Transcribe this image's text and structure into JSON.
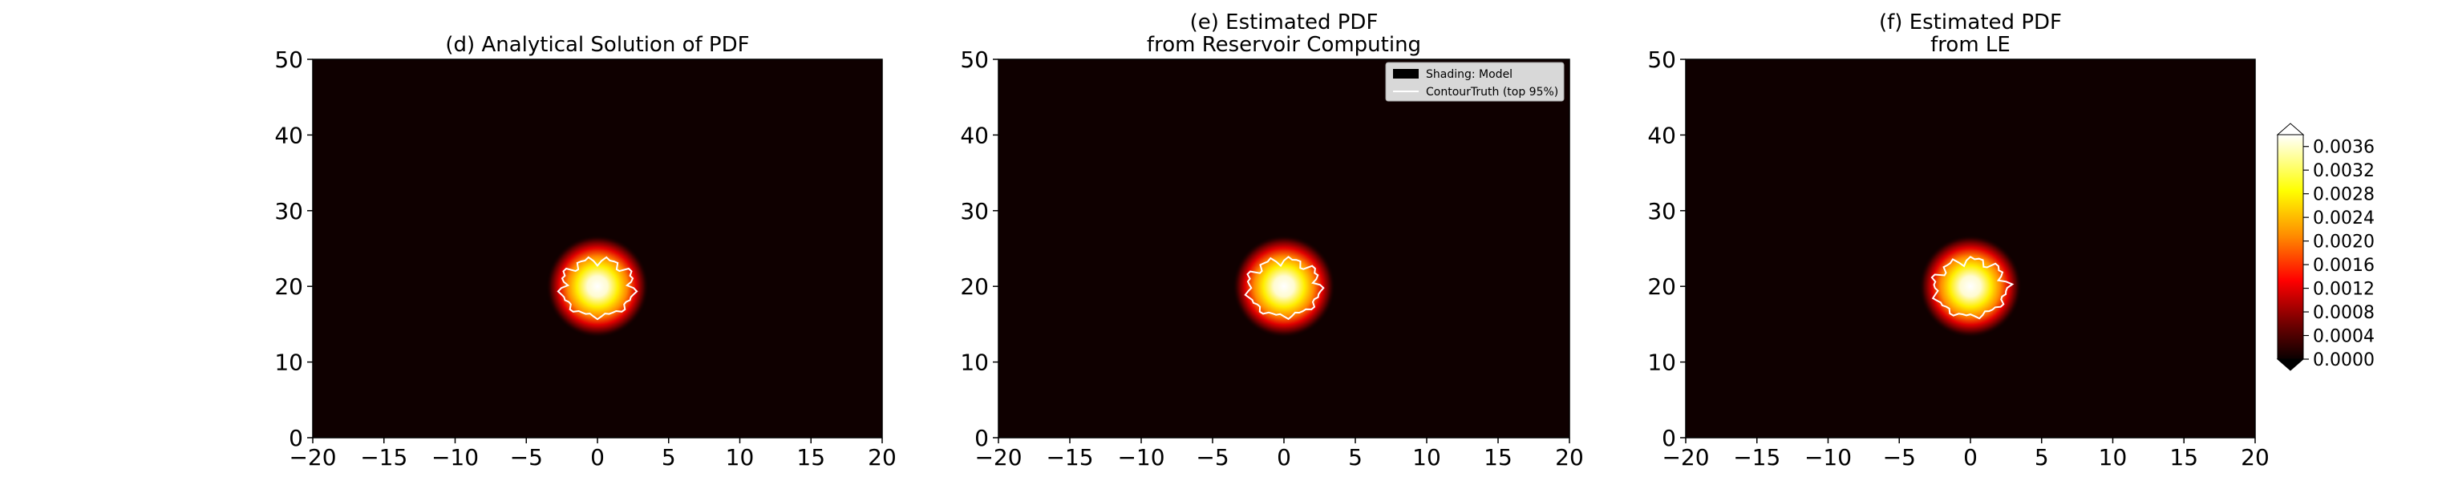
{
  "chart_data": [
    {
      "type": "heatmap",
      "title": [
        "(d) Analytical Solution of PDF"
      ],
      "xlim": [
        -20,
        20
      ],
      "ylim": [
        0,
        50
      ],
      "xticks": [
        "−20",
        "−15",
        "−10",
        "−5",
        "0",
        "5",
        "10",
        "15",
        "20"
      ],
      "yticks": [
        "0",
        "10",
        "20",
        "30",
        "40",
        "50"
      ],
      "peak_center": [
        0,
        20
      ],
      "peak_value": 0.0038,
      "legend": null
    },
    {
      "type": "heatmap",
      "title": [
        "(e) Estimated PDF",
        "from Reservoir Computing"
      ],
      "xlim": [
        -20,
        20
      ],
      "ylim": [
        0,
        50
      ],
      "xticks": [
        "−20",
        "−15",
        "−10",
        "−5",
        "0",
        "5",
        "10",
        "15",
        "20"
      ],
      "yticks": [
        "0",
        "10",
        "20",
        "30",
        "40",
        "50"
      ],
      "peak_center": [
        0,
        20
      ],
      "peak_value": 0.0038,
      "legend": {
        "placement": "top-right",
        "entries": [
          "Shading: Model",
          "ContourTruth (top 95%)"
        ]
      }
    },
    {
      "type": "heatmap",
      "title": [
        "(f) Estimated PDF",
        "from LE"
      ],
      "xlim": [
        -20,
        20
      ],
      "ylim": [
        0,
        50
      ],
      "xticks": [
        "−20",
        "−15",
        "−10",
        "−5",
        "0",
        "5",
        "10",
        "15",
        "20"
      ],
      "yticks": [
        "0",
        "10",
        "20",
        "30",
        "40",
        "50"
      ],
      "peak_center": [
        0,
        20
      ],
      "peak_value": 0.0038,
      "legend": null
    }
  ],
  "colorbar": {
    "colormap": "hot",
    "range": [
      0,
      0.0038
    ],
    "ticks": [
      "0.0000",
      "0.0004",
      "0.0008",
      "0.0012",
      "0.0016",
      "0.0020",
      "0.0024",
      "0.0028",
      "0.0032",
      "0.0036"
    ]
  },
  "colors": {
    "background": "#0f0000",
    "contour": "#ffffff"
  }
}
